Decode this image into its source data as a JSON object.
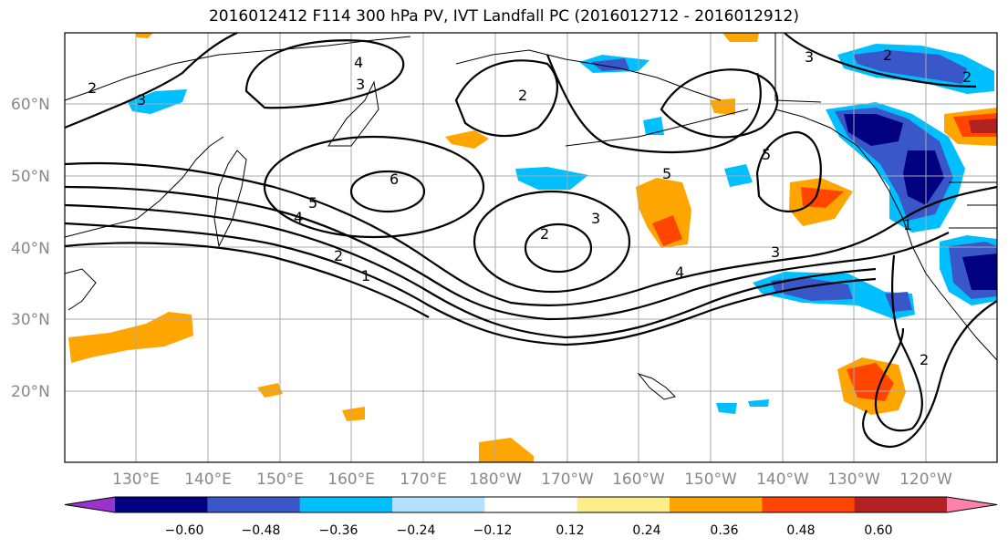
{
  "title": "2016012412 F114 300 hPa PV, IVT Landfall PC (2016012712 - 2016012912)",
  "map": {
    "lon_labels": [
      "130°E",
      "140°E",
      "150°E",
      "160°E",
      "170°E",
      "180°W",
      "170°W",
      "160°W",
      "150°W",
      "140°W",
      "130°W",
      "120°W"
    ],
    "lat_labels": [
      "20°N",
      "30°N",
      "40°N",
      "50°N",
      "60°N"
    ],
    "contour_labels": [
      "2",
      "3",
      "4",
      "2",
      "6",
      "5",
      "4",
      "2",
      "1",
      "3",
      "2",
      "5",
      "4",
      "3",
      "5",
      "3",
      "2",
      "1",
      "2",
      "3",
      "2"
    ]
  },
  "colorbar": {
    "ticks": [
      "−0.60",
      "−0.48",
      "−0.36",
      "−0.24",
      "−0.12",
      "0.12",
      "0.24",
      "0.36",
      "0.48",
      "0.60"
    ],
    "colors": [
      "#9933cc",
      "#000080",
      "#3a57c9",
      "#00bfff",
      "#b2e2ff",
      "#ffffff",
      "#ffec8b",
      "#ffa500",
      "#ff4500",
      "#b22222",
      "#ff82ab"
    ]
  }
}
